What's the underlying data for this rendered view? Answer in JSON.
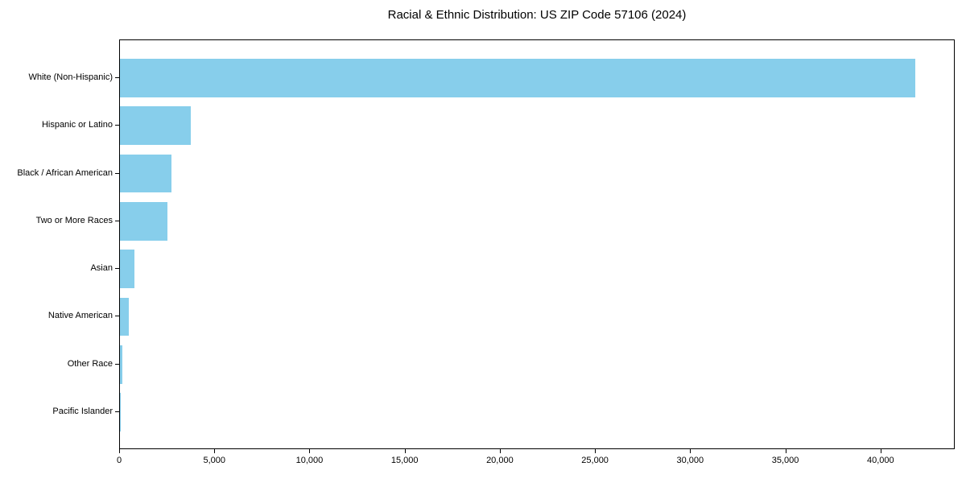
{
  "figure": {
    "background": "#ffffff"
  },
  "chart_data": {
    "type": "bar",
    "orientation": "horizontal",
    "title": "Racial & Ethnic Distribution: US ZIP Code 57106 (2024)",
    "xlabel": "",
    "ylabel": "",
    "categories": [
      "White (Non-Hispanic)",
      "Hispanic or Latino",
      "Black / African American",
      "Two or More Races",
      "Asian",
      "Native American",
      "Other Race",
      "Pacific Islander"
    ],
    "values": [
      41800,
      3720,
      2710,
      2500,
      760,
      465,
      140,
      20
    ],
    "xlim": [
      0,
      43900
    ],
    "x_ticks": [
      0,
      5000,
      10000,
      15000,
      20000,
      25000,
      30000,
      35000,
      40000
    ],
    "x_tick_labels": [
      "0",
      "5,000",
      "10,000",
      "15,000",
      "20,000",
      "25,000",
      "30,000",
      "35,000",
      "40,000"
    ],
    "bar_color": "#87CEEB",
    "axis_color": "#000000",
    "text_color": "#000000",
    "bar_height_fraction": 0.8,
    "grid": false,
    "legend": null
  }
}
